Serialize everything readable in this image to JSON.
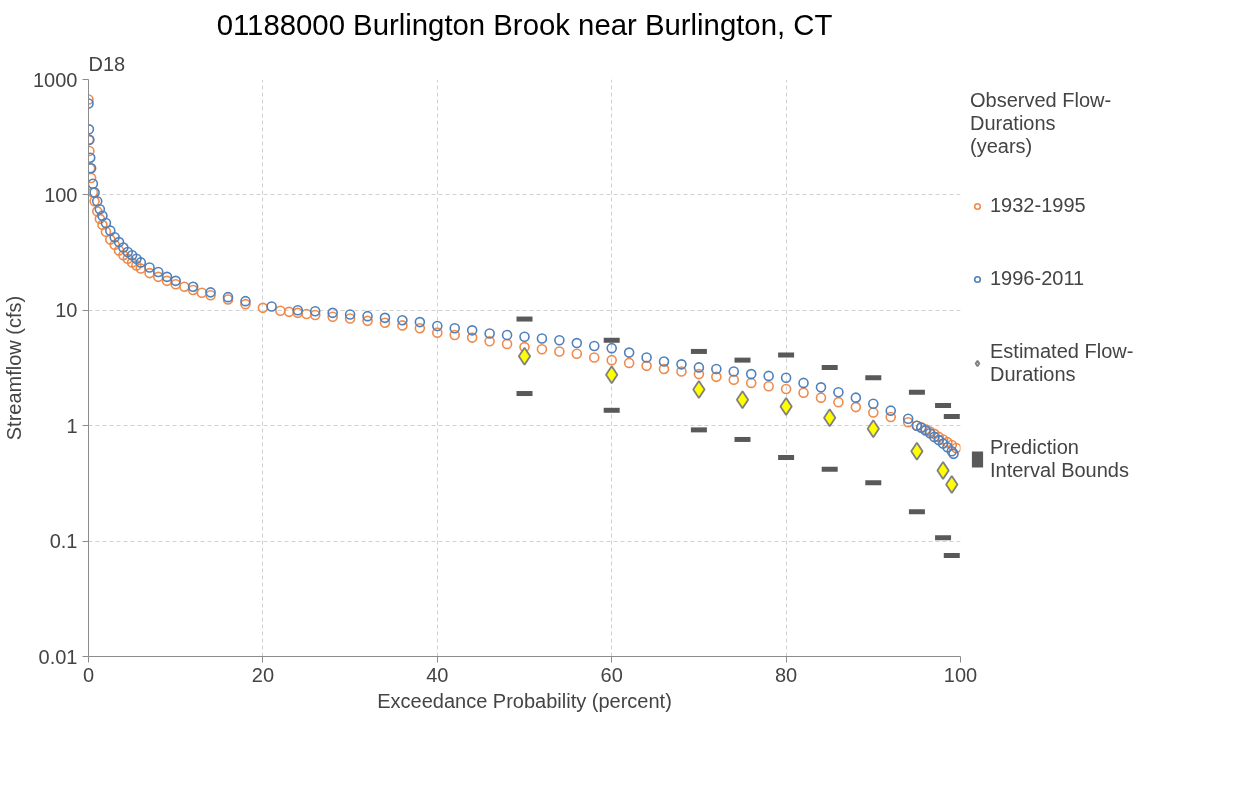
{
  "chart_data": {
    "type": "scatter",
    "title": "01188000 Burlington Brook near Burlington, CT",
    "xlabel": "Exceedance Probability (percent)",
    "ylabel": "Streamflow (cfs)",
    "legend_title": "Observed Flow-Durations (years)",
    "annotations": [
      "D18"
    ],
    "log": "y",
    "grid": true,
    "legend": "right",
    "xlim": [
      0,
      100
    ],
    "xticks": [
      0,
      20,
      40,
      60,
      80,
      100
    ],
    "ylim": [
      0.01,
      1000
    ],
    "yticks": [
      0.01,
      0.1,
      1,
      10,
      100,
      1000
    ],
    "series": [
      {
        "name": "1932-1995",
        "color": "#f08a4b",
        "marker": "circle",
        "x": [
          0,
          0.05,
          0.1,
          0.2,
          0.3,
          0.5,
          0.7,
          1,
          1.3,
          1.6,
          2,
          2.5,
          3,
          3.5,
          4,
          4.5,
          5,
          5.5,
          6,
          7,
          8,
          9,
          10,
          11,
          12,
          13,
          14,
          16,
          18,
          20,
          22,
          23,
          24,
          25,
          26,
          28,
          30,
          32,
          34,
          36,
          38,
          40,
          42,
          44,
          46,
          48,
          50,
          52,
          54,
          56,
          58,
          60,
          62,
          64,
          66,
          68,
          70,
          72,
          74,
          76,
          78,
          80,
          82,
          84,
          86,
          88,
          90,
          92,
          94,
          95,
          95.5,
          96,
          96.5,
          97,
          97.5,
          98,
          98.5,
          99,
          99.5
        ],
        "values": [
          670,
          300,
          240,
          170,
          140,
          105,
          88,
          72,
          62,
          55,
          48,
          41,
          37,
          33,
          30,
          28,
          26,
          24.5,
          23,
          21,
          19.5,
          18,
          16.8,
          16,
          15,
          14.2,
          13.5,
          12.4,
          11.3,
          10.5,
          9.9,
          9.7,
          9.5,
          9.3,
          9.1,
          8.8,
          8.5,
          8.1,
          7.8,
          7.4,
          7.0,
          6.4,
          6.1,
          5.8,
          5.4,
          5.1,
          4.8,
          4.6,
          4.4,
          4.2,
          3.9,
          3.7,
          3.5,
          3.3,
          3.1,
          2.95,
          2.8,
          2.65,
          2.5,
          2.35,
          2.2,
          2.08,
          1.93,
          1.75,
          1.6,
          1.45,
          1.3,
          1.19,
          1.07,
          1.0,
          0.97,
          0.93,
          0.89,
          0.85,
          0.8,
          0.76,
          0.72,
          0.68,
          0.64
        ]
      },
      {
        "name": "1996-2011",
        "color": "#4f81bd",
        "marker": "circle",
        "x": [
          0,
          0.05,
          0.1,
          0.2,
          0.3,
          0.5,
          0.7,
          1,
          1.3,
          1.6,
          2,
          2.5,
          3,
          3.5,
          4,
          4.5,
          5,
          5.5,
          6,
          7,
          8,
          9,
          10,
          12,
          14,
          16,
          18,
          21,
          24,
          26,
          28,
          30,
          32,
          34,
          36,
          38,
          40,
          42,
          44,
          46,
          48,
          50,
          52,
          54,
          56,
          58,
          60,
          62,
          64,
          66,
          68,
          70,
          72,
          74,
          76,
          78,
          80,
          82,
          84,
          86,
          88,
          90,
          92,
          94,
          95,
          95.5,
          96,
          96.5,
          97,
          97.5,
          98,
          98.5,
          99,
          99.2
        ],
        "values": [
          620,
          370,
          300,
          210,
          170,
          125,
          105,
          88,
          75,
          66,
          57,
          49,
          43,
          39,
          35,
          32,
          30,
          28,
          26,
          23.5,
          21.5,
          19.5,
          18,
          16,
          14.3,
          13,
          12,
          10.8,
          10,
          9.8,
          9.5,
          9.2,
          8.9,
          8.6,
          8.2,
          7.9,
          7.3,
          7.0,
          6.7,
          6.3,
          6.1,
          5.9,
          5.7,
          5.5,
          5.2,
          4.9,
          4.7,
          4.3,
          3.9,
          3.6,
          3.4,
          3.2,
          3.1,
          2.95,
          2.8,
          2.7,
          2.6,
          2.35,
          2.15,
          1.95,
          1.75,
          1.55,
          1.35,
          1.15,
          1.0,
          0.96,
          0.91,
          0.86,
          0.8,
          0.75,
          0.7,
          0.65,
          0.6,
          0.57
        ]
      },
      {
        "name": "Estimated Flow-Durations",
        "color": "#ffff00",
        "marker": "diamond",
        "x": [
          50,
          60,
          70,
          75,
          80,
          85,
          90,
          95,
          98,
          99
        ],
        "values": [
          4.0,
          2.76,
          2.06,
          1.68,
          1.47,
          1.17,
          0.94,
          0.6,
          0.41,
          0.31
        ]
      },
      {
        "name": "Prediction Interval Bounds",
        "color": "#595959",
        "x": [
          50,
          60,
          70,
          75,
          80,
          85,
          90,
          95,
          98,
          99,
          50,
          60,
          70,
          75,
          80,
          85,
          90,
          95,
          98,
          99
        ],
        "values": [
          8.4,
          5.5,
          4.4,
          3.7,
          4.1,
          3.2,
          2.6,
          1.95,
          1.5,
          1.2,
          1.9,
          1.36,
          0.92,
          0.76,
          0.53,
          0.42,
          0.32,
          0.18,
          0.107,
          0.075
        ]
      }
    ]
  }
}
